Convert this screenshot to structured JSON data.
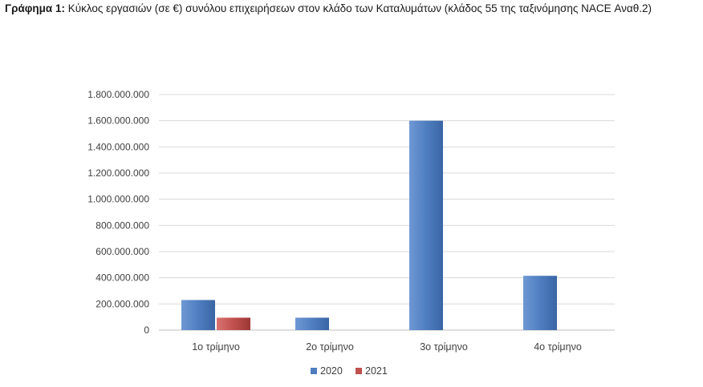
{
  "caption": {
    "lead": "Γράφημα 1:",
    "text": " Κύκλος εργασιών (σε €) συνόλου επιχειρήσεων στον κλάδο των Καταλυμάτων (κλάδος 55 της ταξινόμησης NACE Αναθ.2)"
  },
  "colors": {
    "series_2020": "#4f7ec0",
    "series_2021": "#c0504d",
    "grid": "#d9d9d9"
  },
  "chart_data": {
    "type": "bar",
    "title": "",
    "xlabel": "",
    "ylabel": "",
    "categories": [
      "1ο τρίμηνο",
      "2ο τρίμηνο",
      "3ο τρίμηνο",
      "4ο τρίμηνο"
    ],
    "series": [
      {
        "name": "2020",
        "values": [
          230000000,
          95000000,
          1600000000,
          415000000
        ]
      },
      {
        "name": "2021",
        "values": [
          95000000,
          null,
          null,
          null
        ]
      }
    ],
    "ylim": [
      0,
      1800000000
    ],
    "yticks": [
      "0",
      "200.000.000",
      "400.000.000",
      "600.000.000",
      "800.000.000",
      "1.000.000.000",
      "1.200.000.000",
      "1.400.000.000",
      "1.600.000.000",
      "1.800.000.000"
    ],
    "grid": true,
    "legend": "bottom"
  }
}
